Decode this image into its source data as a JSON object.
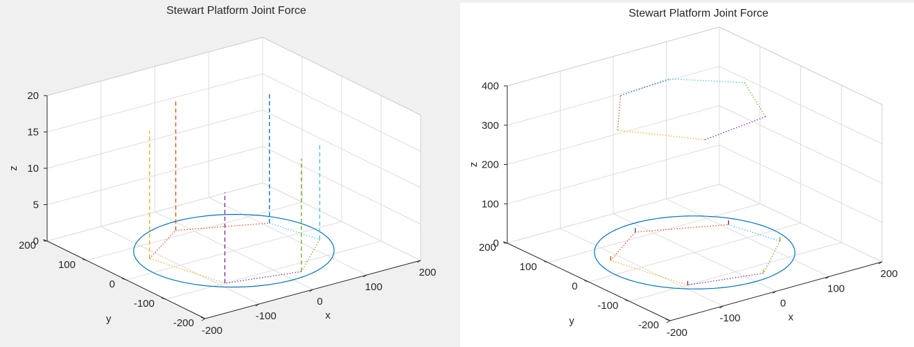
{
  "chart_data": [
    {
      "type": "line",
      "plot_kind": "3d",
      "title": "Stewart Platform Joint Force",
      "xlabel": "x",
      "ylabel": "y",
      "zlabel": "z",
      "xlim": [
        -200,
        200
      ],
      "ylim": [
        -200,
        200
      ],
      "zlim": [
        0,
        20
      ],
      "xticks": [
        "-200",
        "-100",
        "0",
        "100",
        "200"
      ],
      "yticks": [
        "-200",
        "-100",
        "0",
        "100",
        "200"
      ],
      "zticks": [
        "0",
        "5",
        "10",
        "15",
        "20"
      ],
      "grid": true,
      "circle": {
        "radius": 150,
        "z": 0,
        "color": "#0072bd"
      },
      "base_joints": [
        [
          -120,
          50
        ],
        [
          -20,
          120
        ],
        [
          110,
          60
        ],
        [
          130,
          -40
        ],
        [
          30,
          -130
        ],
        [
          -90,
          -100
        ]
      ],
      "polygon_colors": [
        "#d95319",
        "#d95319",
        "#4dbeee",
        "#77ac30",
        "#7e2f8e",
        "#edb120"
      ],
      "force_bars": [
        {
          "x": -120,
          "y": 50,
          "force": 17.5,
          "color": "#edb120"
        },
        {
          "x": -20,
          "y": 120,
          "force": 18,
          "color": "#d95319"
        },
        {
          "x": 110,
          "y": 60,
          "force": 18,
          "color": "#0072bd"
        },
        {
          "x": 130,
          "y": -40,
          "force": 13,
          "color": "#4dbeee"
        },
        {
          "x": 30,
          "y": -130,
          "force": 15.5,
          "color": "#77ac30"
        },
        {
          "x": -90,
          "y": -100,
          "force": 12.5,
          "color": "#7e2f8e"
        }
      ]
    },
    {
      "type": "line",
      "plot_kind": "3d",
      "title": "Stewart Platform Joint Force",
      "xlabel": "x",
      "ylabel": "y",
      "zlabel": "z",
      "xlim": [
        -200,
        200
      ],
      "ylim": [
        -200,
        200
      ],
      "zlim": [
        0,
        400
      ],
      "xticks": [
        "-200",
        "-100",
        "0",
        "100",
        "200"
      ],
      "yticks": [
        "-200",
        "-100",
        "0",
        "100",
        "200"
      ],
      "zticks": [
        "0",
        "100",
        "200",
        "300",
        "400"
      ],
      "grid": true,
      "circle": {
        "radius": 150,
        "z": 0,
        "color": "#0072bd"
      },
      "base_joints": [
        [
          -120,
          50
        ],
        [
          -20,
          120
        ],
        [
          110,
          60
        ],
        [
          130,
          -40
        ],
        [
          30,
          -130
        ],
        [
          -90,
          -100
        ]
      ],
      "polygon_colors": [
        "#d95319",
        "#d95319",
        "#4dbeee",
        "#77ac30",
        "#7e2f8e",
        "#edb120"
      ],
      "force_bars": [
        {
          "x": -120,
          "y": 50,
          "force": 15,
          "color": "#d95319"
        },
        {
          "x": -20,
          "y": 120,
          "force": 15,
          "color": "#0072bd"
        },
        {
          "x": 110,
          "y": 60,
          "force": 15,
          "color": "#a2142f"
        },
        {
          "x": 130,
          "y": -40,
          "force": 15,
          "color": "#77ac30"
        },
        {
          "x": 30,
          "y": -130,
          "force": 15,
          "color": "#edb120"
        },
        {
          "x": -90,
          "y": -100,
          "force": 15,
          "color": "#7e2f8e"
        }
      ],
      "platform": {
        "z": 350,
        "vertices": [
          [
            -130,
            20
          ],
          [
            -40,
            130
          ],
          [
            60,
            140
          ],
          [
            140,
            60
          ],
          [
            80,
            -70
          ],
          [
            -50,
            -90
          ]
        ],
        "colors": [
          "#d95319",
          "#0072bd",
          "#4dbeee",
          "#77ac30",
          "#7e2f8e",
          "#edb120"
        ]
      }
    }
  ]
}
